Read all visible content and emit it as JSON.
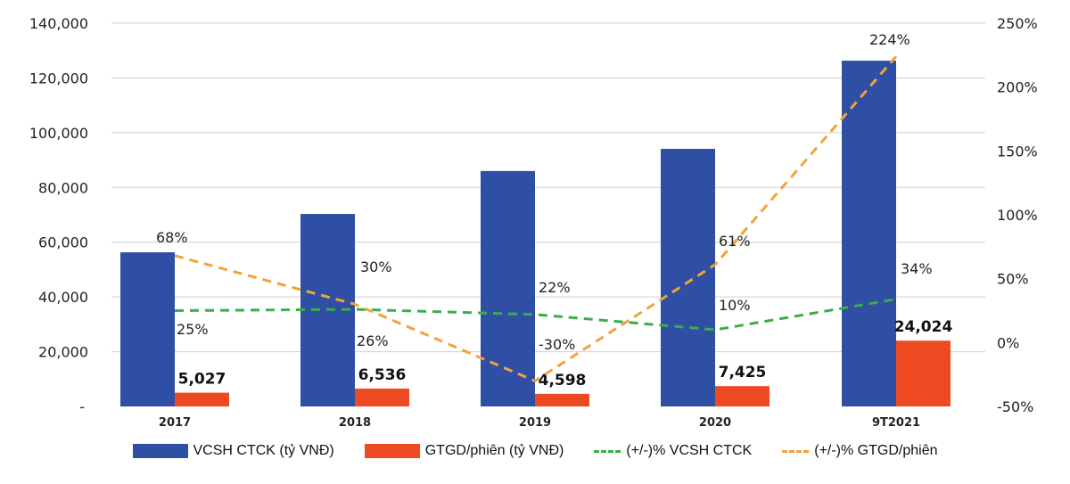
{
  "chart_data": {
    "type": "bar",
    "categories": [
      "2017",
      "2018",
      "2019",
      "2020",
      "9T2021"
    ],
    "left_axis": {
      "range": [
        0,
        140000
      ],
      "ticks": [
        "-",
        "20,000",
        "40,000",
        "60,000",
        "80,000",
        "100,000",
        "120,000",
        "140,000"
      ]
    },
    "right_axis": {
      "range": [
        -50,
        250
      ],
      "ticks": [
        "-50%",
        "0%",
        "50%",
        "100%",
        "150%",
        "200%",
        "250%"
      ]
    },
    "grid": true,
    "legend_position": "bottom",
    "series": [
      {
        "name": "VCSH CTCK (tỷ VNĐ)",
        "type": "bar",
        "axis": "left",
        "color": "#2e4fa3",
        "values": [
          56300,
          70300,
          86000,
          94100,
          126300
        ]
      },
      {
        "name": "GTGD/phiên (tỷ VNĐ)",
        "type": "bar",
        "axis": "left",
        "color": "#ee4a22",
        "values": [
          5027,
          6536,
          4598,
          7425,
          24024
        ],
        "labels": [
          "5,027",
          "6,536",
          "4,598",
          "7,425",
          "24,024"
        ]
      },
      {
        "name": "(+/-)% VCSH CTCK",
        "type": "line",
        "axis": "right",
        "color": "#3aae48",
        "values": [
          25,
          26,
          22,
          10,
          34
        ],
        "labels": [
          "25%",
          "26%",
          "22%",
          "10%",
          "34%"
        ]
      },
      {
        "name": "(+/-)% GTGD/phiên",
        "type": "line",
        "axis": "right",
        "color": "#f2a23a",
        "values": [
          68,
          30,
          -30,
          61,
          224
        ],
        "labels": [
          "68%",
          "30%",
          "-30%",
          "61%",
          "224%"
        ]
      }
    ]
  }
}
